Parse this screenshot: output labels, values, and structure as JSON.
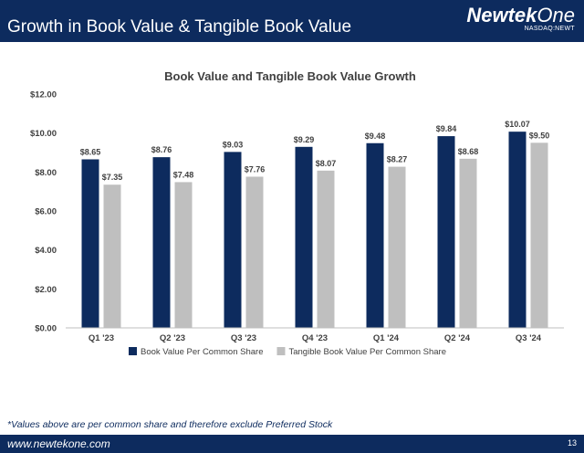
{
  "header": {
    "title": "Growth in Book Value & Tangible Book Value",
    "logo_name_bold": "Newtek",
    "logo_name_light": "One",
    "logo_ticker": "NASDAQ:NEWT"
  },
  "colors": {
    "navy": "#0d2b5e",
    "book_value": "#0d2b5e",
    "tangible_book_value": "#bfbfbf"
  },
  "chart_data": {
    "type": "bar",
    "title": "Book Value and Tangible Book Value Growth",
    "categories": [
      "Q1 '23",
      "Q2 '23",
      "Q3 '23",
      "Q4 '23",
      "Q1 '24",
      "Q2 '24",
      "Q3 '24"
    ],
    "series": [
      {
        "name": "Book Value Per Common Share",
        "values": [
          8.65,
          8.76,
          9.03,
          9.29,
          9.48,
          9.84,
          10.07
        ],
        "labels": [
          "$8.65",
          "$8.76",
          "$9.03",
          "$9.29",
          "$9.48",
          "$9.84",
          "$10.07"
        ],
        "color": "#0d2b5e"
      },
      {
        "name": "Tangible Book Value Per Common Share",
        "values": [
          7.35,
          7.48,
          7.76,
          8.07,
          8.27,
          8.68,
          9.5
        ],
        "labels": [
          "$7.35",
          "$7.48",
          "$7.76",
          "$8.07",
          "$8.27",
          "$8.68",
          "$9.50"
        ],
        "color": "#bfbfbf"
      }
    ],
    "y_ticks": [
      0,
      2,
      4,
      6,
      8,
      10,
      12
    ],
    "y_tick_labels": [
      "$0.00",
      "$2.00",
      "$4.00",
      "$6.00",
      "$8.00",
      "$10.00",
      "$12.00"
    ],
    "ylim": [
      0,
      12
    ],
    "grid": false,
    "legend_position": "bottom"
  },
  "footnote": "*Values above are per common share and therefore exclude Preferred Stock",
  "footer": {
    "url": "www.newtekone.com",
    "page_number": "13"
  }
}
